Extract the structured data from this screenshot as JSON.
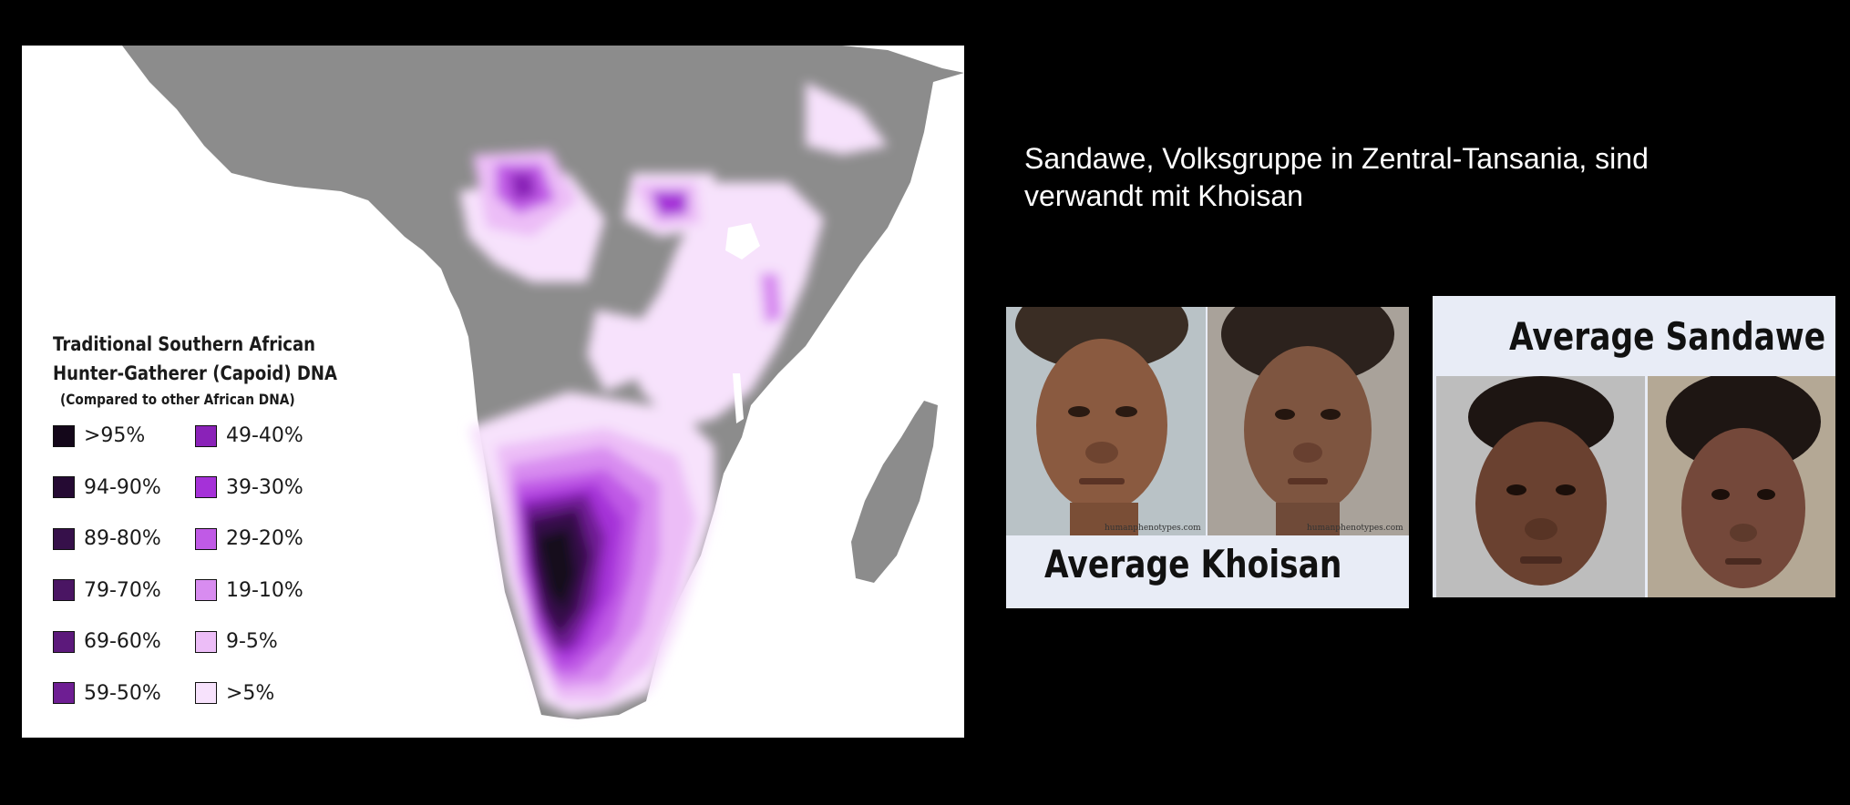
{
  "map": {
    "legend": {
      "title_line1": "Traditional Southern African",
      "title_line2": "Hunter-Gatherer (Capoid) DNA",
      "subtitle": "(Compared to other African DNA)",
      "items": [
        {
          "label": ">95%",
          "color": "#14071a"
        },
        {
          "label": "94-90%",
          "color": "#250a33"
        },
        {
          "label": "89-80%",
          "color": "#36104a"
        },
        {
          "label": "79-70%",
          "color": "#4a1563"
        },
        {
          "label": "69-60%",
          "color": "#5c197b"
        },
        {
          "label": "59-50%",
          "color": "#6e1e93"
        },
        {
          "label": "49-40%",
          "color": "#8a22b8"
        },
        {
          "label": "39-30%",
          "color": "#a531d8"
        },
        {
          "label": "29-20%",
          "color": "#c05ae6"
        },
        {
          "label": "19-10%",
          "color": "#d88cf0"
        },
        {
          "label": "9-5%",
          "color": "#ecbdf7"
        },
        {
          "label": ">5%",
          "color": "#f7e2fc"
        }
      ]
    },
    "colors": {
      "land": "#8c8c8c",
      "sea": "#ffffff"
    }
  },
  "caption": {
    "line1": "Sandawe, Volksgruppe in Zentral-Tansania, sind",
    "line2": "verwandt mit Khoisan"
  },
  "khoisan_panel": {
    "label": "Average Khoisan",
    "watermark": "humanphenotypes.com"
  },
  "sandawe_panel": {
    "label": "Average Sandawe"
  }
}
